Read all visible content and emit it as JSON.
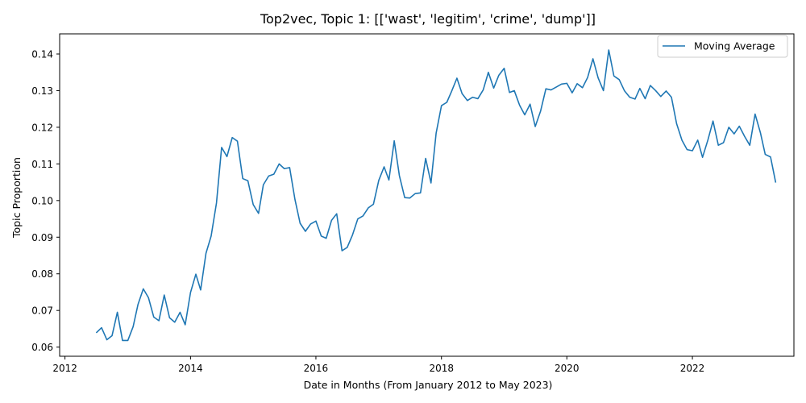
{
  "chart_data": {
    "type": "line",
    "title": "Top2vec, Topic 1: [['wast', 'legitim', 'crime', 'dump']]",
    "xlabel": "Date in Months (From January 2012 to May 2023)",
    "ylabel": "Topic Proportion",
    "xlim": [
      "2011-12-01",
      "2023-08-15"
    ],
    "ylim": [
      0.0575,
      0.1455
    ],
    "x_ticks": [
      {
        "value": "2012-01-01",
        "label": "2012"
      },
      {
        "value": "2014-01-01",
        "label": "2014"
      },
      {
        "value": "2016-01-01",
        "label": "2016"
      },
      {
        "value": "2018-01-01",
        "label": "2018"
      },
      {
        "value": "2020-01-01",
        "label": "2020"
      },
      {
        "value": "2022-01-01",
        "label": "2022"
      }
    ],
    "y_ticks": [
      {
        "value": 0.06,
        "label": "0.06"
      },
      {
        "value": 0.07,
        "label": "0.07"
      },
      {
        "value": 0.08,
        "label": "0.08"
      },
      {
        "value": 0.09,
        "label": "0.09"
      },
      {
        "value": 0.1,
        "label": "0.10"
      },
      {
        "value": 0.11,
        "label": "0.11"
      },
      {
        "value": 0.12,
        "label": "0.12"
      },
      {
        "value": 0.13,
        "label": "0.13"
      },
      {
        "value": 0.14,
        "label": "0.14"
      }
    ],
    "grid": false,
    "legend": {
      "position": "top-right"
    },
    "series": [
      {
        "name": "Moving Average",
        "color": "#1f77b4",
        "x": [
          "2012-07",
          "2012-08",
          "2012-09",
          "2012-10",
          "2012-11",
          "2012-12",
          "2013-01",
          "2013-02",
          "2013-03",
          "2013-04",
          "2013-05",
          "2013-06",
          "2013-07",
          "2013-08",
          "2013-09",
          "2013-10",
          "2013-11",
          "2013-12",
          "2014-01",
          "2014-02",
          "2014-03",
          "2014-04",
          "2014-05",
          "2014-06",
          "2014-07",
          "2014-08",
          "2014-09",
          "2014-10",
          "2014-11",
          "2014-12",
          "2015-01",
          "2015-02",
          "2015-03",
          "2015-04",
          "2015-05",
          "2015-06",
          "2015-07",
          "2015-08",
          "2015-09",
          "2015-10",
          "2015-11",
          "2015-12",
          "2016-01",
          "2016-02",
          "2016-03",
          "2016-04",
          "2016-05",
          "2016-06",
          "2016-07",
          "2016-08",
          "2016-09",
          "2016-10",
          "2016-11",
          "2016-12",
          "2017-01",
          "2017-02",
          "2017-03",
          "2017-04",
          "2017-05",
          "2017-06",
          "2017-07",
          "2017-08",
          "2017-09",
          "2017-10",
          "2017-11",
          "2017-12",
          "2018-01",
          "2018-02",
          "2018-03",
          "2018-04",
          "2018-05",
          "2018-06",
          "2018-07",
          "2018-08",
          "2018-09",
          "2018-10",
          "2018-11",
          "2018-12",
          "2019-01",
          "2019-02",
          "2019-03",
          "2019-04",
          "2019-05",
          "2019-06",
          "2019-07",
          "2019-08",
          "2019-09",
          "2019-10",
          "2019-11",
          "2019-12",
          "2020-01",
          "2020-02",
          "2020-03",
          "2020-04",
          "2020-05",
          "2020-06",
          "2020-07",
          "2020-08",
          "2020-09",
          "2020-10",
          "2020-11",
          "2020-12",
          "2021-01",
          "2021-02",
          "2021-03",
          "2021-04",
          "2021-05",
          "2021-06",
          "2021-07",
          "2021-08",
          "2021-09",
          "2021-10",
          "2021-11",
          "2021-12",
          "2022-01",
          "2022-02",
          "2022-03",
          "2022-04",
          "2022-05",
          "2022-06",
          "2022-07",
          "2022-08",
          "2022-09",
          "2022-10",
          "2022-11",
          "2022-12",
          "2023-01",
          "2023-02",
          "2023-03",
          "2023-04",
          "2023-05"
        ],
        "values": [
          0.0639,
          0.0653,
          0.062,
          0.0631,
          0.0695,
          0.0618,
          0.0618,
          0.0656,
          0.0716,
          0.0759,
          0.0735,
          0.0682,
          0.0672,
          0.0742,
          0.068,
          0.0668,
          0.0695,
          0.0661,
          0.0749,
          0.0799,
          0.0756,
          0.0856,
          0.0903,
          0.0993,
          0.1145,
          0.112,
          0.1172,
          0.1162,
          0.106,
          0.1054,
          0.0989,
          0.0965,
          0.1043,
          0.1067,
          0.1072,
          0.11,
          0.1087,
          0.109,
          0.1003,
          0.0938,
          0.0916,
          0.0936,
          0.0944,
          0.0903,
          0.0897,
          0.0946,
          0.0964,
          0.0863,
          0.0872,
          0.0906,
          0.095,
          0.0958,
          0.098,
          0.099,
          0.1055,
          0.1092,
          0.1056,
          0.1163,
          0.1068,
          0.1008,
          0.1007,
          0.1019,
          0.1021,
          0.1115,
          0.1048,
          0.1184,
          0.1259,
          0.1268,
          0.1298,
          0.1334,
          0.1292,
          0.1273,
          0.1282,
          0.1278,
          0.1302,
          0.135,
          0.1307,
          0.1342,
          0.1361,
          0.1295,
          0.13,
          0.126,
          0.1234,
          0.1263,
          0.1202,
          0.1244,
          0.1305,
          0.1302,
          0.131,
          0.1318,
          0.132,
          0.1294,
          0.1319,
          0.1308,
          0.1336,
          0.1387,
          0.1335,
          0.13,
          0.1411,
          0.134,
          0.133,
          0.13,
          0.1282,
          0.1277,
          0.1306,
          0.1278,
          0.1314,
          0.13,
          0.1284,
          0.1299,
          0.1282,
          0.121,
          0.1165,
          0.1139,
          0.1136,
          0.1165,
          0.1118,
          0.1165,
          0.1217,
          0.1151,
          0.1158,
          0.12,
          0.1182,
          0.1203,
          0.1175,
          0.1151,
          0.1236,
          0.1185,
          0.1126,
          0.1119,
          0.1049
        ]
      }
    ]
  }
}
